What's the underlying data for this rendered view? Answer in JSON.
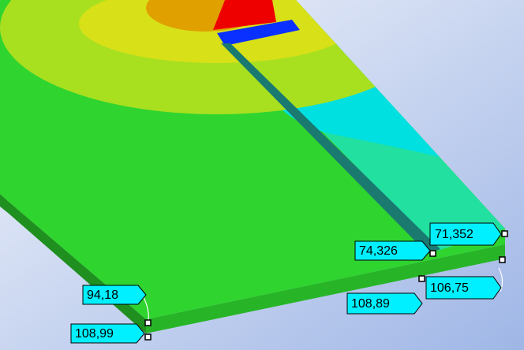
{
  "probes": [
    "94,18",
    "108,99",
    "74,326",
    "71,352",
    "108,89",
    "106,75"
  ]
}
